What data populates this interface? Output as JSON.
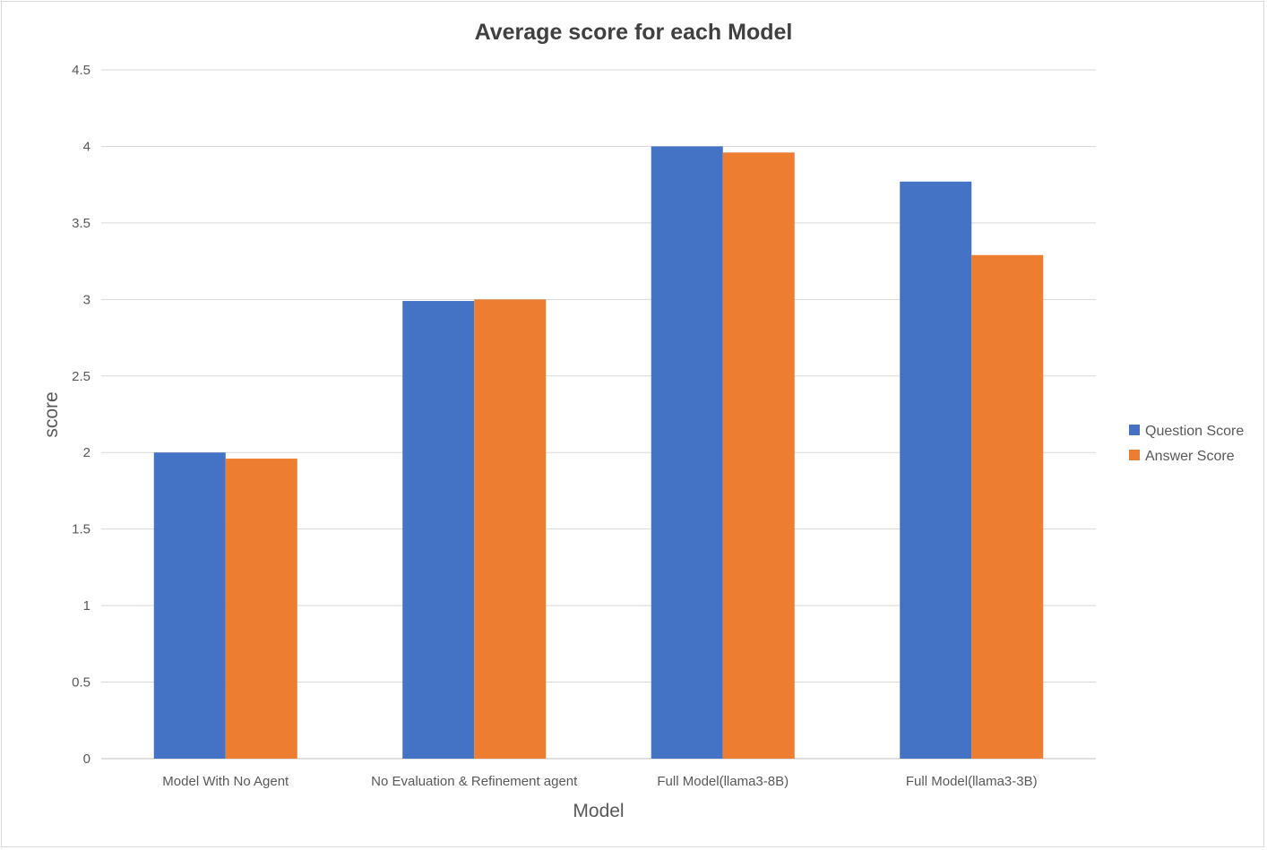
{
  "chart_data": {
    "type": "bar",
    "title": "Average score for each Model",
    "xlabel": "Model",
    "ylabel": "score",
    "categories": [
      "Model With No Agent",
      "No Evaluation & Refinement agent",
      "Full Model(llama3-8B)",
      "Full Model(llama3-3B)"
    ],
    "series": [
      {
        "name": "Question Score",
        "color": "#4472c4",
        "values": [
          2.0,
          2.99,
          4.0,
          3.77
        ]
      },
      {
        "name": "Answer Score",
        "color": "#ed7d31",
        "values": [
          1.96,
          3.0,
          3.96,
          3.29
        ]
      }
    ],
    "ylim": [
      0,
      4.5
    ],
    "yticks": [
      "0",
      "0.5",
      "1",
      "1.5",
      "2",
      "2.5",
      "3",
      "3.5",
      "4",
      "4.5"
    ],
    "grid": true,
    "legend_position": "right"
  }
}
